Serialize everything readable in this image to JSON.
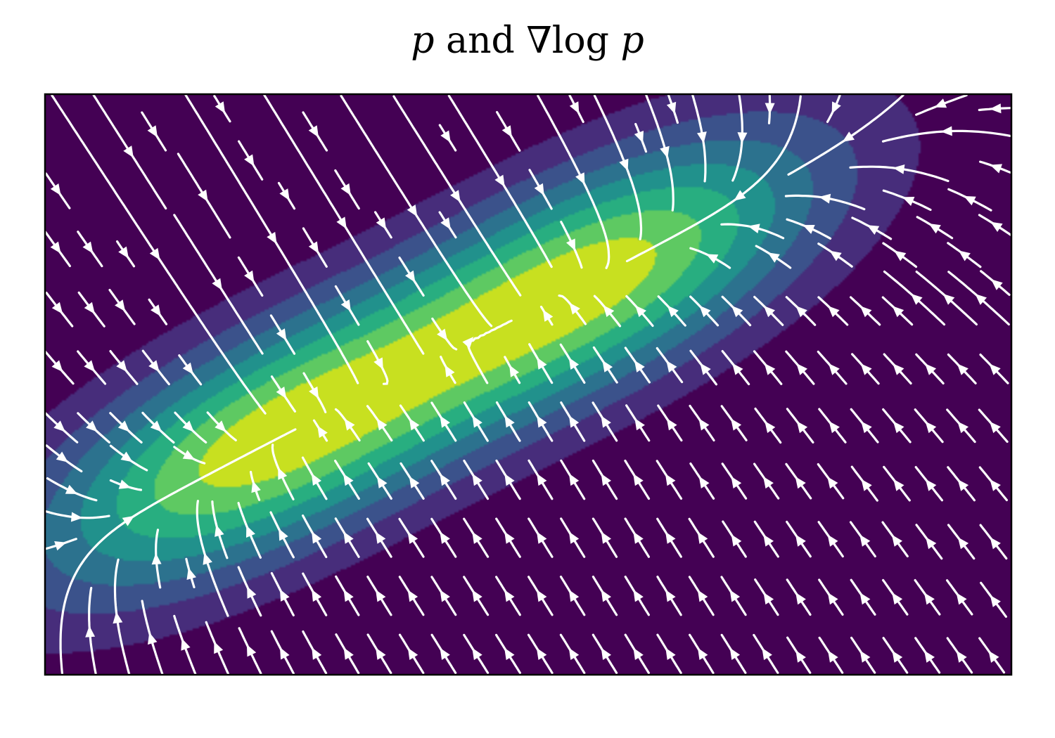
{
  "chart_data": {
    "type": "streamplot-contourf",
    "title": {
      "p1": "p",
      "and": "and",
      "nabla": "∇",
      "log": "log",
      "p2": "p"
    },
    "xlabel": "",
    "ylabel": "",
    "xlim": [
      -3,
      3
    ],
    "ylim": [
      -2,
      2
    ],
    "ticks": "none",
    "grid": false,
    "legend": "none",
    "colormap": [
      "#440154",
      "#472d7b",
      "#3b528b",
      "#2c728e",
      "#21918c",
      "#28ae80",
      "#5ec962",
      "#c8e020"
    ],
    "density_components": [
      {
        "mean": [
          -1.7,
          -0.45
        ],
        "cov": [
          [
            1.0,
            0.45
          ],
          [
            0.45,
            0.5
          ]
        ],
        "weight": 0.5
      },
      {
        "mean": [
          0.45,
          0.75
        ],
        "cov": [
          [
            1.0,
            0.45
          ],
          [
            0.45,
            0.5
          ]
        ],
        "weight": 0.5
      }
    ],
    "contour_levels": 8,
    "stream_color": "#ffffff"
  }
}
